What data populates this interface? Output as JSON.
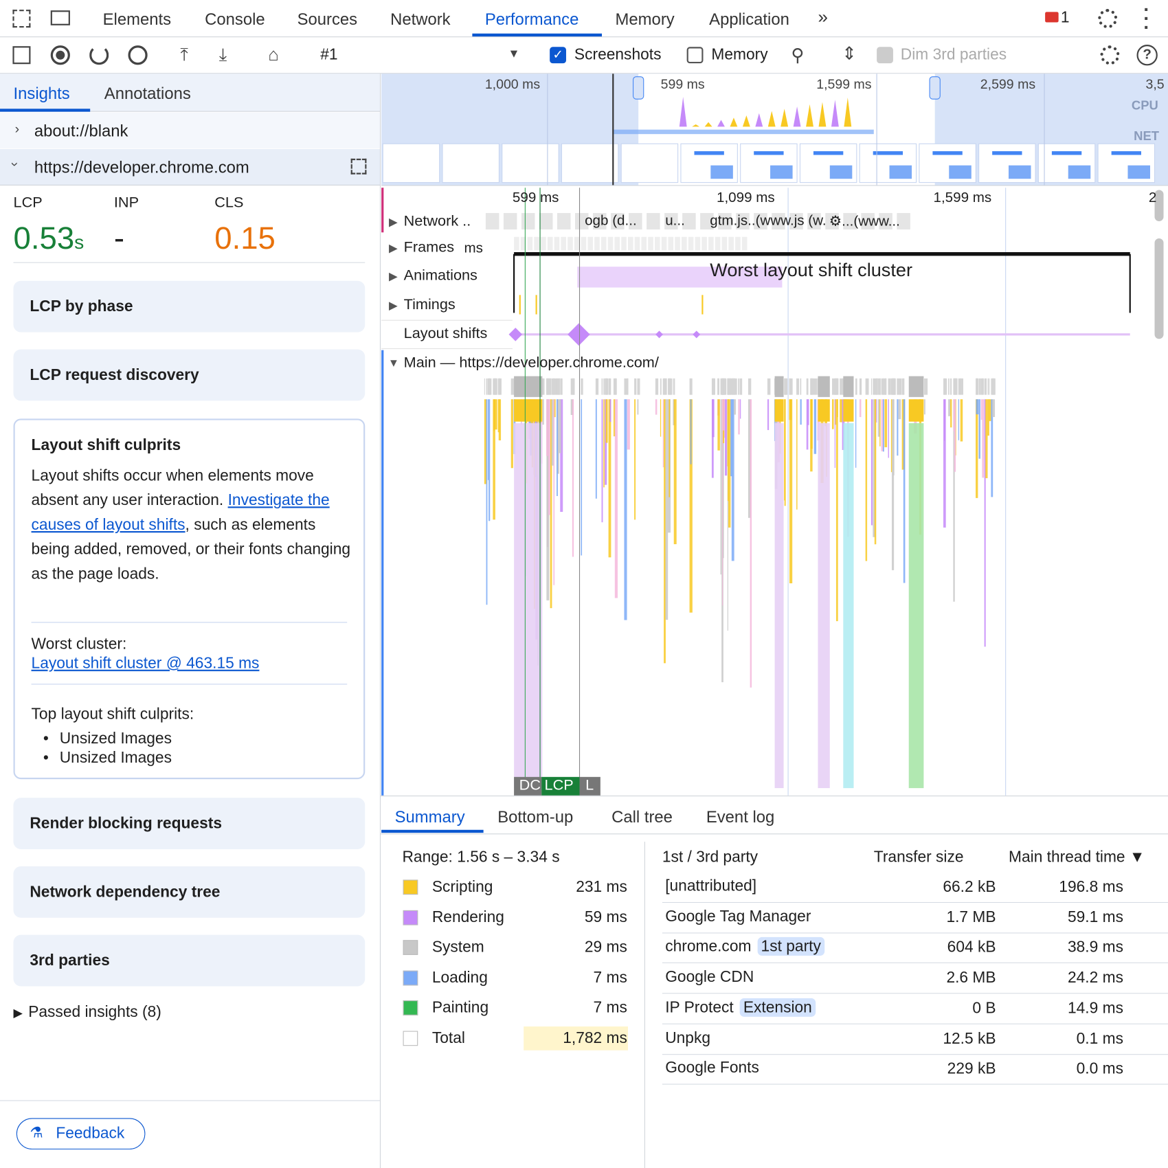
{
  "top_tabs": [
    "Elements",
    "Console",
    "Sources",
    "Network",
    "Performance",
    "Memory",
    "Application"
  ],
  "error_count": "1",
  "toolbar": {
    "recording": "#1",
    "screenshots": "Screenshots",
    "memory": "Memory",
    "dim_third_parties": "Dim 3rd parties"
  },
  "sidebar": {
    "tabs": [
      "Insights",
      "Annotations"
    ],
    "pages": [
      "about://blank",
      "https://developer.chrome.com"
    ],
    "metrics": [
      {
        "label": "LCP",
        "value": "0.53",
        "unit": "s",
        "color": "#188038"
      },
      {
        "label": "INP",
        "value": "-",
        "color": "#1f1f1f"
      },
      {
        "label": "CLS",
        "value": "0.15",
        "color": "#e8710a"
      }
    ],
    "insights_before": [
      "LCP by phase",
      "LCP request discovery"
    ],
    "culprits": {
      "title": "Layout shift culprits",
      "text": "Layout shifts occur when elements move absent any user interaction.",
      "link": "Investigate the causes of layout shifts",
      "text_after": ", such as elements being added, removed, or their fonts changing as the page loads.",
      "worst_label": "Worst cluster:",
      "worst_link": "Layout shift cluster @ 463.15 ms",
      "top_label": "Top layout shift culprits:",
      "items": [
        "Unsized Images",
        "Unsized Images"
      ]
    },
    "insights_after": [
      "Render blocking requests",
      "Network dependency tree",
      "3rd parties"
    ],
    "passed": "Passed insights (8)",
    "feedback": "Feedback"
  },
  "timeline": {
    "overview_ticks": [
      "1,000 ms",
      "599 ms",
      "1,599 ms",
      "2,599 ms",
      "3,5"
    ],
    "cpu": "CPU",
    "net": "NET",
    "ticks": [
      "599 ms",
      "1,099 ms",
      "1,599 ms",
      "2"
    ],
    "tracks": [
      "Network ..",
      "Frames",
      "Animations",
      "Timings",
      "Layout shifts"
    ],
    "network_items": [
      "ogb (d...",
      "u...",
      "gtm.js..(www.js (w.",
      "⚙...(www..."
    ],
    "frames_label": "ms",
    "cluster_label": "Worst layout shift cluster",
    "main": "Main — https://developer.chrome.com/",
    "markers": [
      "DC",
      "LCP",
      "L"
    ]
  },
  "bottom": {
    "tabs": [
      "Summary",
      "Bottom-up",
      "Call tree",
      "Event log"
    ],
    "range": "Range: 1.56 s – 3.34 s",
    "categories": [
      {
        "name": "Scripting",
        "value": "231 ms",
        "color": "#f8c923"
      },
      {
        "name": "Rendering",
        "value": "59 ms",
        "color": "#c58af9"
      },
      {
        "name": "System",
        "value": "29 ms",
        "color": "#c8c8c8"
      },
      {
        "name": "Loading",
        "value": "7 ms",
        "color": "#7baaf7"
      },
      {
        "name": "Painting",
        "value": "7 ms",
        "color": "#33b852"
      },
      {
        "name": "Total",
        "value": "1,782 ms",
        "color": "#ffffff"
      }
    ],
    "table": {
      "headers": [
        "1st / 3rd party",
        "Transfer size",
        "Main thread time ▼"
      ],
      "rows": [
        {
          "name": "[unattributed]",
          "transfer": "66.2 kB",
          "time": "196.8 ms"
        },
        {
          "name": "Google Tag Manager",
          "transfer": "1.7 MB",
          "time": "59.1 ms"
        },
        {
          "name": "chrome.com",
          "badge": "1st party",
          "transfer": "604 kB",
          "time": "38.9 ms"
        },
        {
          "name": "Google CDN",
          "transfer": "2.6 MB",
          "time": "24.2 ms"
        },
        {
          "name": "IP Protect",
          "badge": "Extension",
          "transfer": "0 B",
          "time": "14.9 ms"
        },
        {
          "name": "Unpkg",
          "transfer": "12.5 kB",
          "time": "0.1 ms"
        },
        {
          "name": "Google Fonts",
          "transfer": "229 kB",
          "time": "0.0 ms"
        }
      ]
    }
  }
}
